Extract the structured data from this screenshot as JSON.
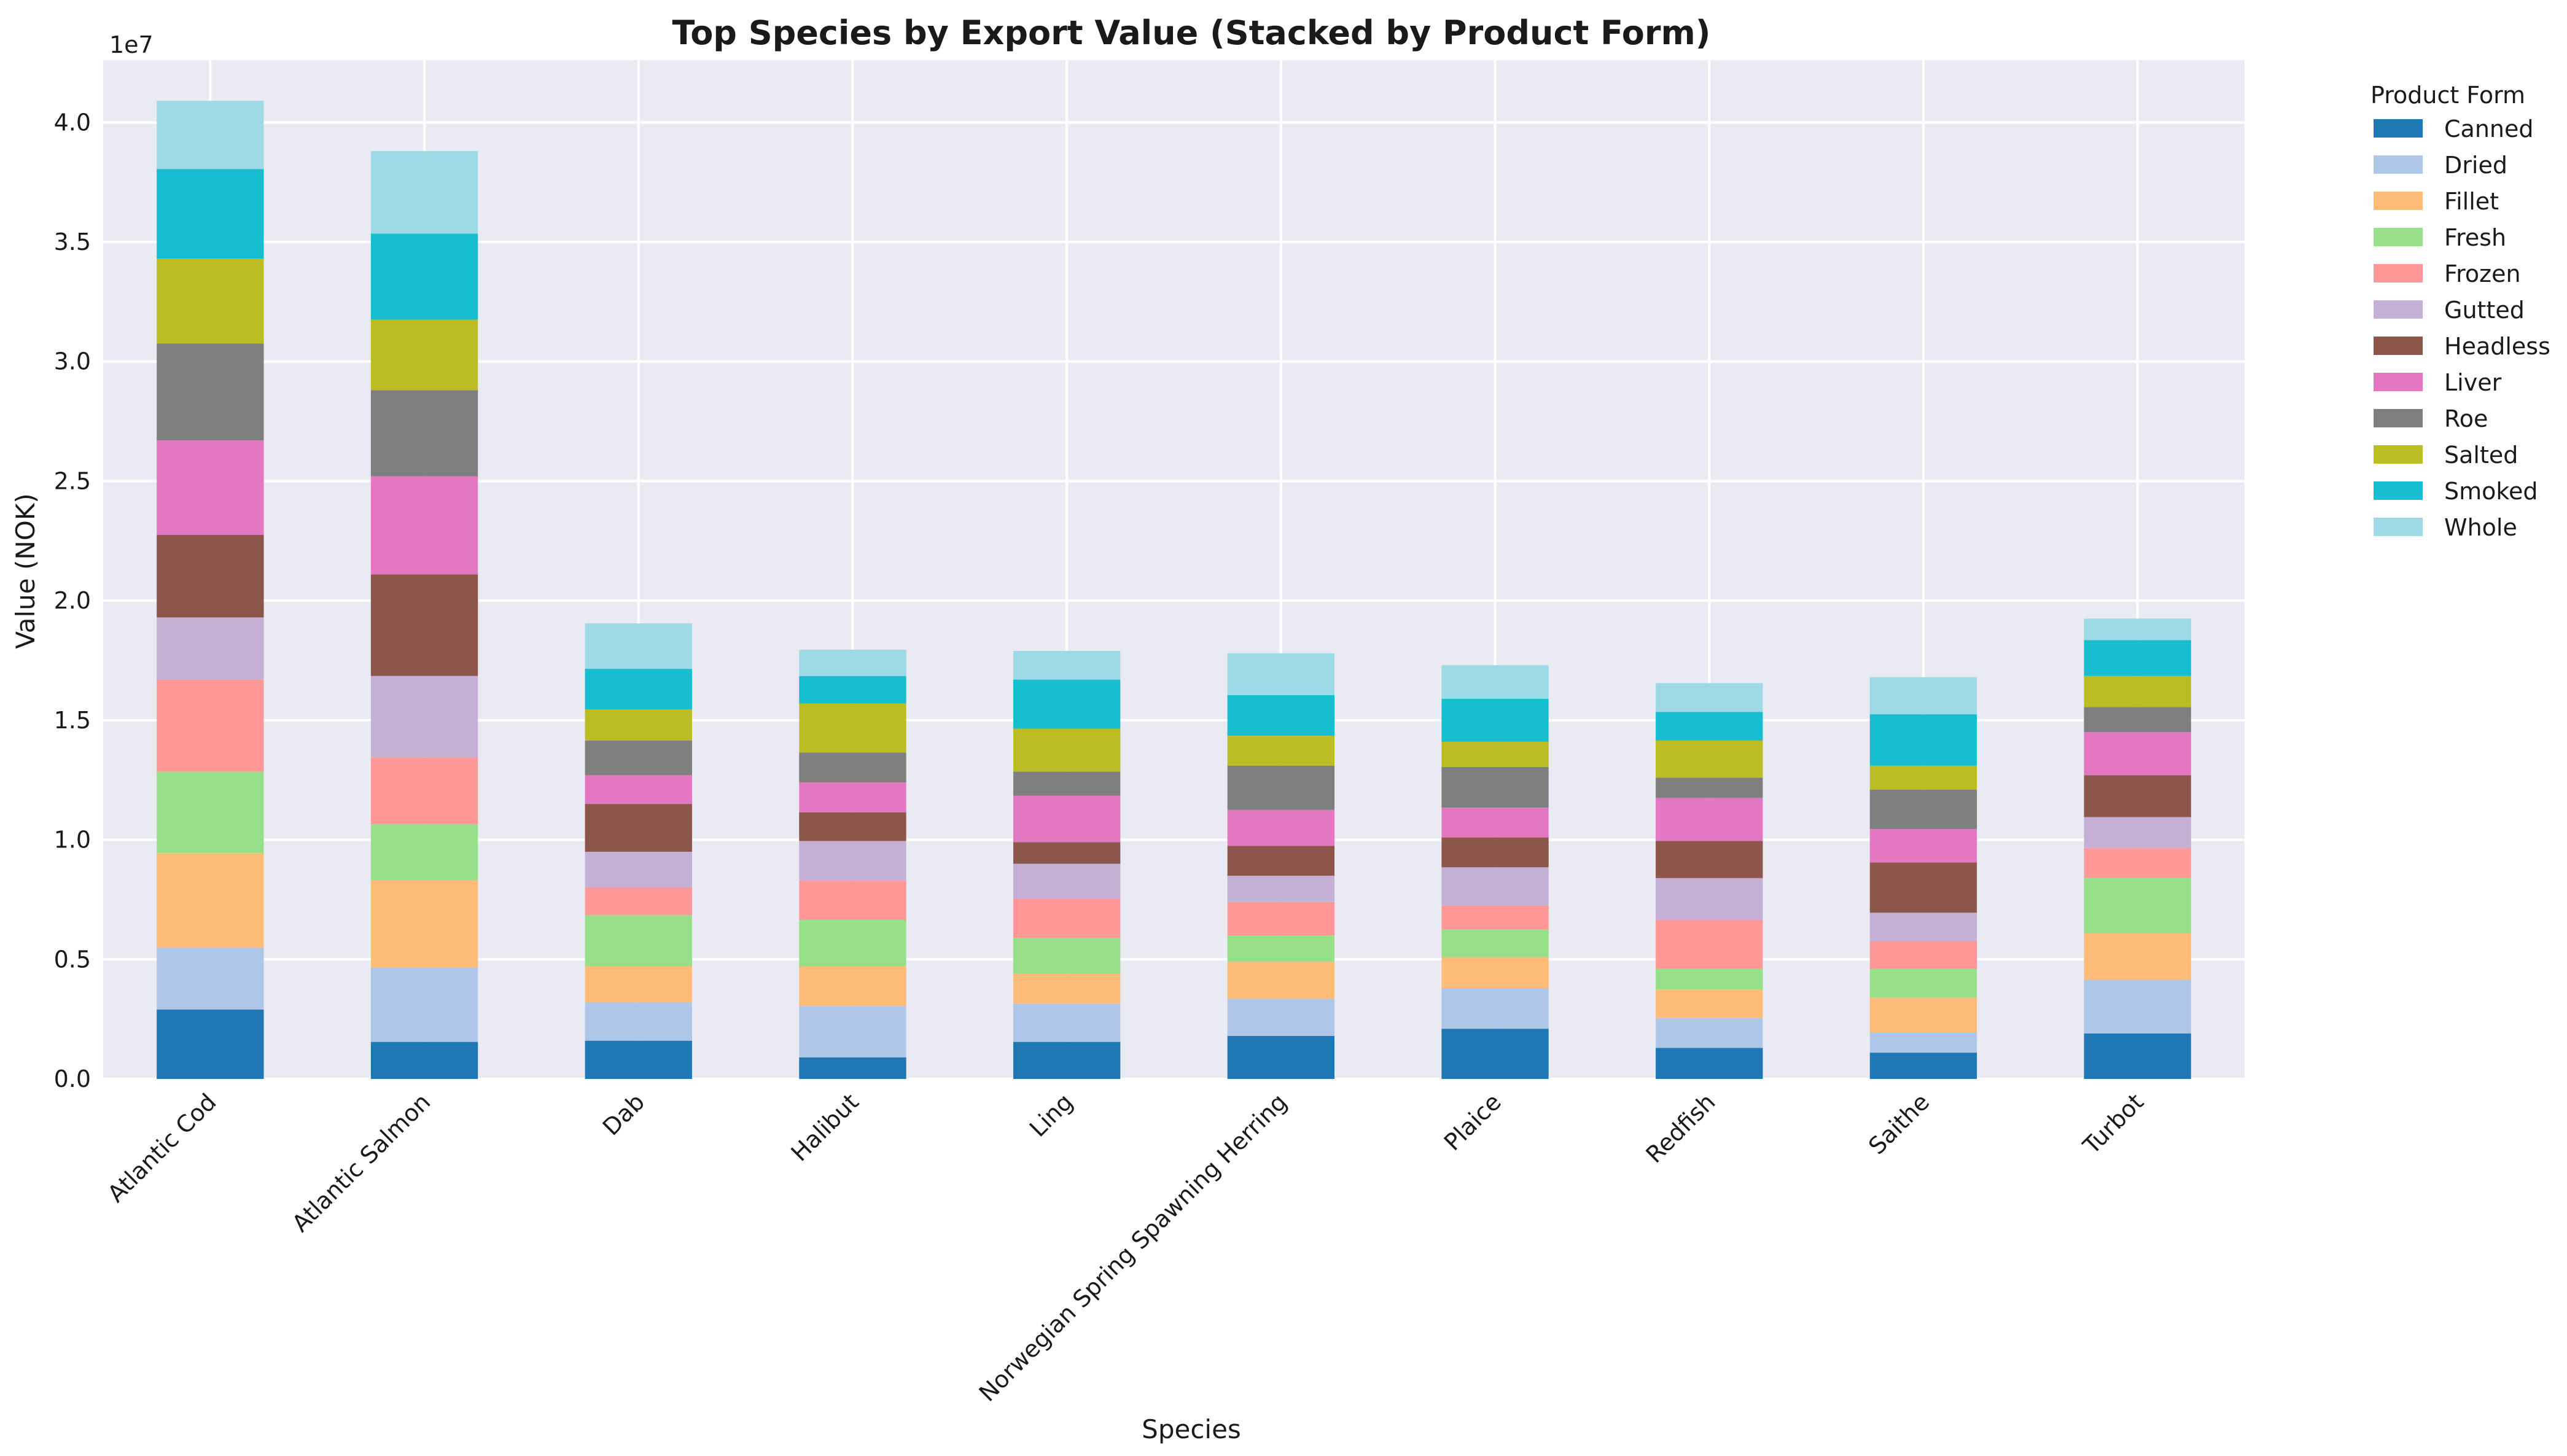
{
  "chart_data": {
    "type": "bar",
    "stacked": true,
    "title": "Top Species by Export Value (Stacked by Product Form)",
    "xlabel": "Species",
    "ylabel": "Value (NOK)",
    "offset_label": "1e7",
    "ylim": [
      0,
      42600000
    ],
    "yticks": [
      0,
      5000000,
      10000000,
      15000000,
      20000000,
      25000000,
      30000000,
      35000000,
      40000000
    ],
    "ytick_labels": [
      "0.0",
      "0.5",
      "1.0",
      "1.5",
      "2.0",
      "2.5",
      "3.0",
      "3.5",
      "4.0"
    ],
    "grid": true,
    "legend_title": "Product Form",
    "legend_position": "outside-right",
    "categories": [
      "Atlantic Cod",
      "Atlantic Salmon",
      "Dab",
      "Halibut",
      "Ling",
      "Norwegian Spring Spawning Herring",
      "Plaice",
      "Redfish",
      "Saithe",
      "Turbot"
    ],
    "series": [
      {
        "name": "Canned",
        "color": "#1f77b4",
        "values": [
          2900000,
          1550000,
          1600000,
          900000,
          1550000,
          1800000,
          2100000,
          1300000,
          1100000,
          1900000
        ]
      },
      {
        "name": "Dried",
        "color": "#aec7e8",
        "values": [
          2600000,
          3100000,
          1600000,
          2150000,
          1600000,
          1550000,
          1700000,
          1250000,
          850000,
          2250000
        ]
      },
      {
        "name": "Fillet",
        "color": "#ffbb78",
        "values": [
          3950000,
          3650000,
          1500000,
          1650000,
          1250000,
          1550000,
          1300000,
          1200000,
          1450000,
          1950000
        ]
      },
      {
        "name": "Fresh",
        "color": "#98df8a",
        "values": [
          3400000,
          2350000,
          2150000,
          1950000,
          1500000,
          1100000,
          1150000,
          850000,
          1200000,
          2300000
        ]
      },
      {
        "name": "Frozen",
        "color": "#ff9896",
        "values": [
          3850000,
          2800000,
          1150000,
          1650000,
          1650000,
          1400000,
          1000000,
          2050000,
          1150000,
          1250000
        ]
      },
      {
        "name": "Gutted",
        "color": "#c5b0d5",
        "values": [
          2600000,
          3400000,
          1500000,
          1650000,
          1450000,
          1100000,
          1600000,
          1750000,
          1200000,
          1300000
        ]
      },
      {
        "name": "Headless",
        "color": "#8c564b",
        "values": [
          3450000,
          4250000,
          2000000,
          1200000,
          900000,
          1250000,
          1250000,
          1550000,
          2100000,
          1750000
        ]
      },
      {
        "name": "Liver",
        "color": "#e377c2",
        "values": [
          3950000,
          4100000,
          1200000,
          1250000,
          1950000,
          1500000,
          1250000,
          1800000,
          1400000,
          1800000
        ]
      },
      {
        "name": "Roe",
        "color": "#7f7f7f",
        "values": [
          4050000,
          3600000,
          1450000,
          1250000,
          1000000,
          1850000,
          1700000,
          850000,
          1650000,
          1050000
        ]
      },
      {
        "name": "Salted",
        "color": "#bcbd22",
        "values": [
          3550000,
          2950000,
          1300000,
          2050000,
          1800000,
          1250000,
          1050000,
          1550000,
          1000000,
          1300000
        ]
      },
      {
        "name": "Smoked",
        "color": "#17becf",
        "values": [
          3750000,
          3600000,
          1700000,
          1150000,
          2050000,
          1700000,
          1800000,
          1200000,
          2150000,
          1500000
        ]
      },
      {
        "name": "Whole",
        "color": "#9edae5",
        "values": [
          2850000,
          3450000,
          1900000,
          1100000,
          1200000,
          1750000,
          1400000,
          1200000,
          1550000,
          900000
        ]
      }
    ]
  }
}
